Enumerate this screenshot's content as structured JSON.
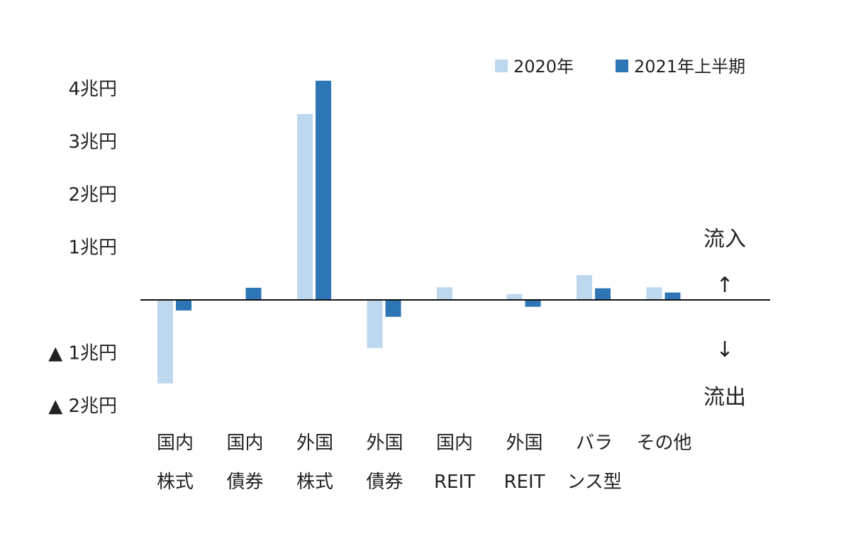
{
  "chart_data": {
    "type": "bar",
    "categories": [
      [
        "国内",
        "株式"
      ],
      [
        "国内",
        "債券"
      ],
      [
        "外国",
        "株式"
      ],
      [
        "外国",
        "債券"
      ],
      [
        "国内",
        "REIT"
      ],
      [
        "外国",
        "REIT"
      ],
      [
        "バラ",
        "ンス型"
      ],
      [
        "その他",
        ""
      ]
    ],
    "series": [
      {
        "name": "2020年",
        "color": "#bdd7ee",
        "values": [
          -1.58,
          0.0,
          3.52,
          -0.91,
          0.24,
          0.11,
          0.47,
          0.24
        ]
      },
      {
        "name": "2021年上半期",
        "color": "#2e75b6",
        "values": [
          -0.2,
          0.23,
          4.15,
          -0.32,
          0.0,
          -0.13,
          0.22,
          0.14
        ]
      }
    ],
    "ylim": [
      -2,
      4
    ],
    "ticks": [
      {
        "value": 4,
        "label": "4兆円"
      },
      {
        "value": 3,
        "label": "3兆円"
      },
      {
        "value": 2,
        "label": "2兆円"
      },
      {
        "value": 1,
        "label": "1兆円"
      },
      {
        "value": -1,
        "label": "▲ 1兆円"
      },
      {
        "value": -2,
        "label": "▲ 2兆円"
      }
    ],
    "annotations": {
      "inflow_label": "流入",
      "inflow_arrow": "↑",
      "outflow_arrow": "↓",
      "outflow_label": "流出"
    },
    "legend_position": "top-right",
    "grid": false
  }
}
